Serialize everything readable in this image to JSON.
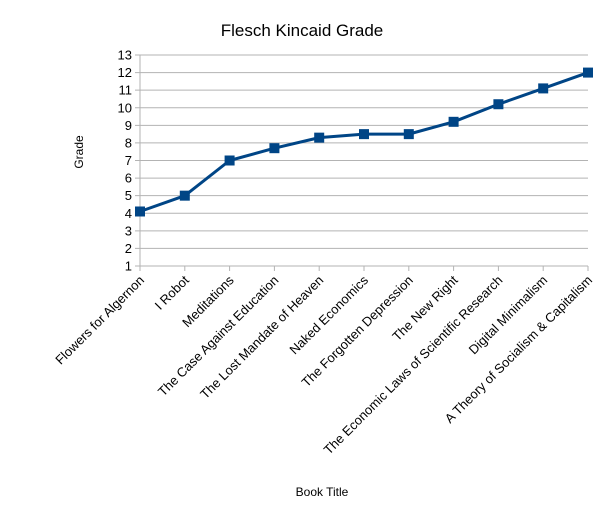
{
  "chart_data": {
    "type": "line",
    "title": "Flesch Kincaid Grade",
    "xlabel": "Book Title",
    "ylabel": "Grade",
    "ylim": [
      1,
      13
    ],
    "yticks": [
      1,
      2,
      3,
      4,
      5,
      6,
      7,
      8,
      9,
      10,
      11,
      12,
      13
    ],
    "grid": true,
    "legend": "none",
    "categories": [
      "Flowers for Algernon",
      "I Robot",
      "Meditations",
      "The Case Against Education",
      "The Lost Mandate of Heaven",
      "Naked Economics",
      "The Forgotten Depression",
      "The New Right",
      "The Economic Laws of Scientific Research",
      "Digital Minimalism",
      "A Theory of Socialism & Capitalism"
    ],
    "series": [
      {
        "values": [
          4.1,
          5.0,
          7.0,
          7.7,
          8.3,
          8.5,
          8.5,
          9.2,
          10.2,
          11.1,
          12.0
        ],
        "color": "#004586"
      }
    ]
  }
}
